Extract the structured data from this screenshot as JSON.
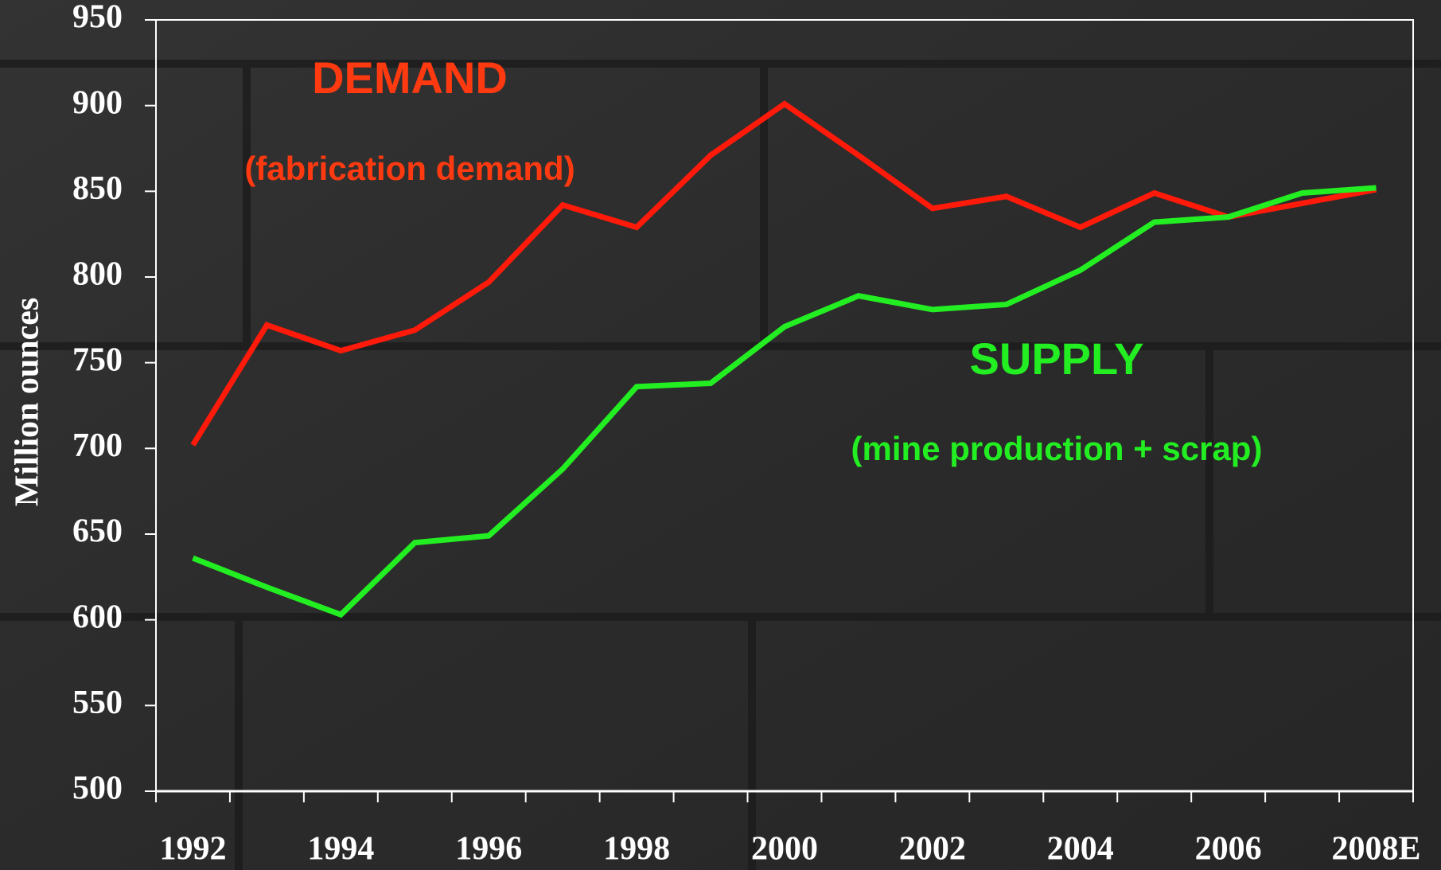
{
  "chart_data": {
    "type": "line",
    "y_label": "Million ounces",
    "categories": [
      "1992",
      null,
      "1994",
      null,
      "1996",
      null,
      "1998",
      null,
      "2000",
      null,
      "2002",
      null,
      "2004",
      null,
      "2006",
      null,
      "2008E"
    ],
    "series": [
      {
        "name": "DEMAND",
        "color": "#ff1a0a",
        "values": [
          702,
          772,
          757,
          769,
          797,
          842,
          829,
          871,
          901,
          871,
          840,
          847,
          829,
          849,
          835,
          843,
          851
        ]
      },
      {
        "name": "SUPPLY",
        "color": "#22ee22",
        "values": [
          636,
          619,
          603,
          645,
          649,
          688,
          736,
          738,
          771,
          789,
          781,
          784,
          804,
          832,
          835,
          849,
          852
        ]
      }
    ],
    "annotations": [
      {
        "text": "(fabrication demand)",
        "color": "#ff3a10"
      },
      {
        "text": "(mine production + scrap)",
        "color": "#22ee22"
      }
    ],
    "ylim": [
      500,
      950
    ],
    "yticks": [
      500,
      550,
      600,
      650,
      700,
      750,
      800,
      850,
      900,
      950
    ]
  }
}
